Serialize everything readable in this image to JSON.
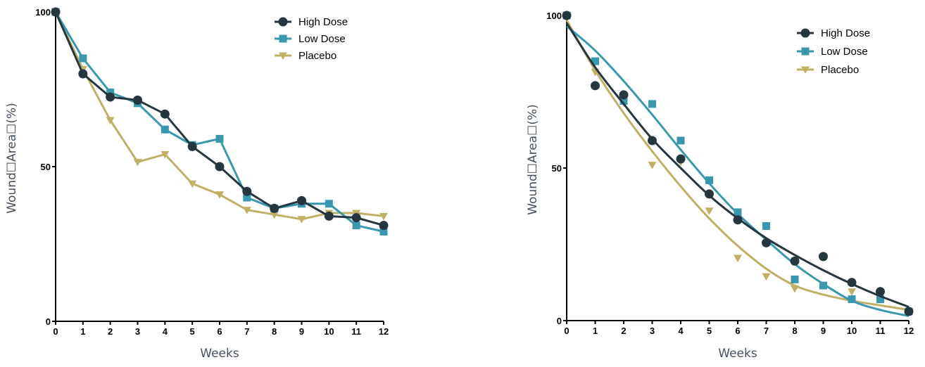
{
  "chart_data": [
    {
      "type": "line",
      "title": "",
      "xlabel": "Weeks",
      "ylabel": "Wound☐Area☐(%)",
      "x": [
        0,
        1,
        2,
        3,
        4,
        5,
        6,
        7,
        8,
        9,
        10,
        11,
        12
      ],
      "xlim": [
        0,
        12
      ],
      "ylim": [
        0,
        100
      ],
      "x_ticks": [
        "0",
        "1",
        "2",
        "3",
        "4",
        "5",
        "6",
        "7",
        "8",
        "9",
        "10",
        "11",
        "12"
      ],
      "y_ticks": [
        "0",
        "50",
        "100"
      ],
      "grid": false,
      "legend_position": "top-right",
      "series": [
        {
          "name": "High Dose",
          "color": "#26363f",
          "marker": "circle",
          "values": [
            100,
            80,
            72.5,
            71.5,
            67,
            56.5,
            50,
            42,
            36.5,
            39,
            34,
            33.5,
            31
          ]
        },
        {
          "name": "Low Dose",
          "color": "#3a97ad",
          "marker": "square",
          "values": [
            100,
            85,
            74,
            70.5,
            62,
            57,
            59,
            40,
            36.5,
            38,
            38,
            31,
            29
          ]
        },
        {
          "name": "Placebo",
          "color": "#bfb066",
          "marker": "triangle-down",
          "values": [
            100,
            81.5,
            65,
            51.5,
            54,
            44.5,
            41,
            36,
            34.5,
            33,
            35,
            35,
            34
          ]
        }
      ]
    },
    {
      "type": "scatter",
      "title": "",
      "xlabel": "Weeks",
      "ylabel": "Wound☐Area☐(%)",
      "x": [
        0,
        1,
        2,
        3,
        4,
        5,
        6,
        7,
        8,
        9,
        10,
        11,
        12
      ],
      "xlim": [
        0,
        12
      ],
      "ylim": [
        0,
        100
      ],
      "x_ticks": [
        "0",
        "1",
        "2",
        "3",
        "4",
        "5",
        "6",
        "7",
        "8",
        "9",
        "10",
        "11",
        "12"
      ],
      "y_ticks": [
        "0",
        "50",
        "100"
      ],
      "grid": false,
      "legend_position": "top-right",
      "fit": "smooth curve",
      "series": [
        {
          "name": "High Dose",
          "color": "#26363f",
          "marker": "circle",
          "values": [
            100,
            77,
            74,
            59,
            53,
            41.5,
            33,
            25.5,
            19.5,
            21,
            12.5,
            9.5,
            3
          ],
          "fit_values": [
            97.5,
            83,
            71,
            59.5,
            50,
            41,
            33.5,
            27,
            21.5,
            16.5,
            12,
            8,
            4.5
          ]
        },
        {
          "name": "Low Dose",
          "color": "#3a97ad",
          "marker": "square",
          "values": [
            100,
            85,
            72,
            71,
            59,
            46,
            35.5,
            31,
            13.5,
            11.5,
            7,
            7,
            3
          ],
          "fit_values": [
            96.5,
            88.5,
            78.5,
            67.5,
            56,
            45,
            35,
            26.5,
            18.5,
            12,
            6.5,
            3.5,
            1.5
          ]
        },
        {
          "name": "Placebo",
          "color": "#bfb066",
          "marker": "triangle-down",
          "values": [
            100,
            81.5,
            71.5,
            51,
            52,
            36,
            20.5,
            14.5,
            10.5,
            null,
            9.5,
            8,
            3
          ],
          "fit_values": [
            98.5,
            82,
            68,
            55.5,
            44,
            33.5,
            24.5,
            17,
            11.5,
            8.5,
            6.5,
            5,
            3.5
          ]
        }
      ]
    }
  ]
}
